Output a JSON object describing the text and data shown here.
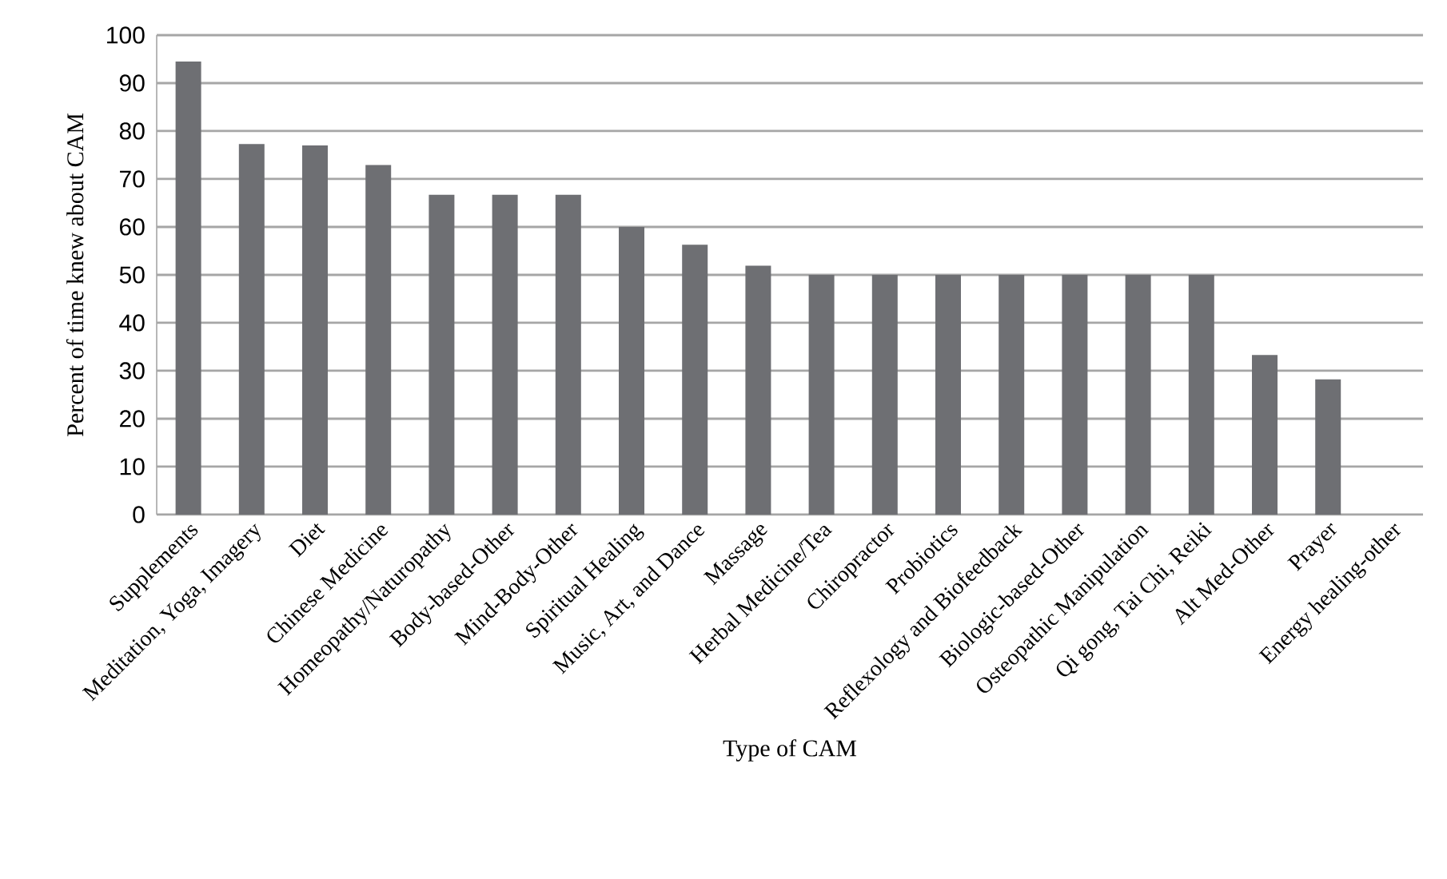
{
  "chart_data": {
    "type": "bar",
    "xlabel": "Type of CAM",
    "ylabel": "Percent of time knew about CAM",
    "categories": [
      "Supplements",
      "Meditation, Yoga, Imagery",
      "Diet",
      "Chinese Medicine",
      "Homeopathy/Naturopathy",
      "Body-based-Other",
      "Mind-Body-Other",
      "Spiritual Healing",
      "Music, Art, and Dance",
      "Massage",
      "Herbal Medicine/Tea",
      "Chiropractor",
      "Probiotics",
      "Reflexology and Biofeedback",
      "Biologic-based-Other",
      "Osteopathic Manipulation",
      "Qi gong, Tai Chi, Reiki",
      "Alt Med-Other",
      "Prayer",
      "Energy healing-other"
    ],
    "values": [
      94.5,
      77.3,
      77.0,
      72.9,
      66.7,
      66.7,
      66.7,
      60.0,
      56.3,
      51.9,
      50,
      50,
      50,
      50,
      50,
      50,
      50,
      33.3,
      28.2,
      0
    ],
    "color": "#6e6f73",
    "ylim": [
      0,
      100
    ],
    "yticks": [
      0,
      10,
      20,
      30,
      40,
      50,
      60,
      70,
      80,
      90,
      100
    ],
    "grid": "y"
  }
}
